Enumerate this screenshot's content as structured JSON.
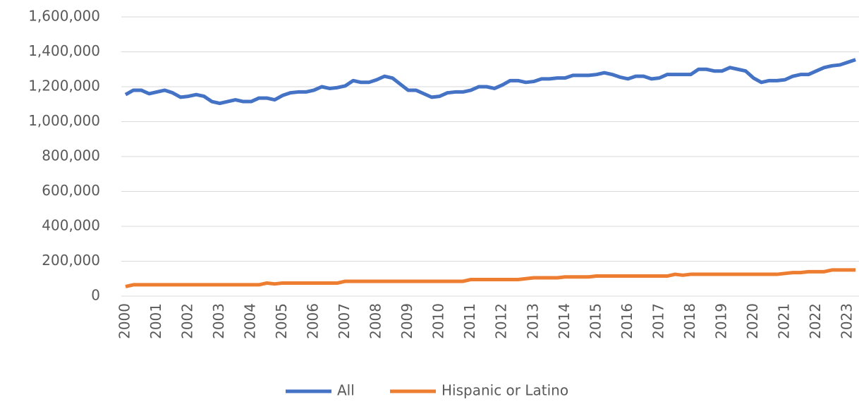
{
  "chart_data": {
    "type": "line",
    "categories": [
      "2000",
      null,
      null,
      null,
      "2001",
      null,
      null,
      null,
      "2002",
      null,
      null,
      null,
      "2003",
      null,
      null,
      null,
      "2004",
      null,
      null,
      null,
      "2005",
      null,
      null,
      null,
      "2006",
      null,
      null,
      null,
      "2007",
      null,
      null,
      null,
      "2008",
      null,
      null,
      null,
      "2009",
      null,
      null,
      null,
      "2010",
      null,
      null,
      null,
      "2011",
      null,
      null,
      null,
      "2012",
      null,
      null,
      null,
      "2013",
      null,
      null,
      null,
      "2014",
      null,
      null,
      null,
      "2015",
      null,
      null,
      null,
      "2016",
      null,
      null,
      null,
      "2017",
      null,
      null,
      null,
      "2018",
      null,
      null,
      null,
      "2019",
      null,
      null,
      null,
      "2020",
      null,
      null,
      null,
      "2021",
      null,
      null,
      null,
      "2022",
      null,
      null,
      null,
      "2023",
      null
    ],
    "series": [
      {
        "name": "All",
        "color": "#4472c4",
        "values": [
          1155000,
          1180000,
          1180000,
          1160000,
          1170000,
          1180000,
          1165000,
          1140000,
          1145000,
          1155000,
          1145000,
          1115000,
          1105000,
          1115000,
          1125000,
          1115000,
          1115000,
          1135000,
          1135000,
          1125000,
          1150000,
          1165000,
          1170000,
          1170000,
          1180000,
          1200000,
          1190000,
          1195000,
          1205000,
          1235000,
          1225000,
          1225000,
          1240000,
          1260000,
          1250000,
          1215000,
          1180000,
          1180000,
          1160000,
          1140000,
          1145000,
          1165000,
          1170000,
          1170000,
          1180000,
          1200000,
          1200000,
          1190000,
          1210000,
          1235000,
          1235000,
          1225000,
          1230000,
          1245000,
          1245000,
          1250000,
          1250000,
          1265000,
          1265000,
          1265000,
          1270000,
          1280000,
          1270000,
          1255000,
          1245000,
          1260000,
          1260000,
          1245000,
          1250000,
          1270000,
          1270000,
          1270000,
          1270000,
          1300000,
          1300000,
          1290000,
          1290000,
          1310000,
          1300000,
          1290000,
          1250000,
          1225000,
          1235000,
          1235000,
          1240000,
          1260000,
          1270000,
          1270000,
          1290000,
          1310000,
          1320000,
          1325000,
          1340000,
          1355000
        ]
      },
      {
        "name": "Hispanic or Latino",
        "color": "#ed7d31",
        "values": [
          55000,
          65000,
          65000,
          65000,
          65000,
          65000,
          65000,
          65000,
          65000,
          65000,
          65000,
          65000,
          65000,
          65000,
          65000,
          65000,
          65000,
          65000,
          75000,
          70000,
          75000,
          75000,
          75000,
          75000,
          75000,
          75000,
          75000,
          75000,
          85000,
          85000,
          85000,
          85000,
          85000,
          85000,
          85000,
          85000,
          85000,
          85000,
          85000,
          85000,
          85000,
          85000,
          85000,
          85000,
          95000,
          95000,
          95000,
          95000,
          95000,
          95000,
          95000,
          100000,
          105000,
          105000,
          105000,
          105000,
          110000,
          110000,
          110000,
          110000,
          115000,
          115000,
          115000,
          115000,
          115000,
          115000,
          115000,
          115000,
          115000,
          115000,
          125000,
          120000,
          125000,
          125000,
          125000,
          125000,
          125000,
          125000,
          125000,
          125000,
          125000,
          125000,
          125000,
          125000,
          130000,
          135000,
          135000,
          140000,
          140000,
          140000,
          150000,
          150000,
          150000,
          150000
        ]
      }
    ],
    "ylim": [
      0,
      1600000
    ],
    "yticks": [
      0,
      {
        "value": 200000,
        "label": "200,000"
      },
      {
        "value": 400000,
        "label": "400,000"
      },
      {
        "value": 600000,
        "label": "600,000"
      },
      {
        "value": 800000,
        "label": "800,000"
      },
      {
        "value": 1000000,
        "label": "1,000,000"
      },
      {
        "value": 1200000,
        "label": "1,200,000"
      },
      {
        "value": 1400000,
        "label": "1,400,000"
      },
      {
        "value": 1600000,
        "label": "1,600,000"
      }
    ],
    "grid": true,
    "legend": "bottom"
  }
}
